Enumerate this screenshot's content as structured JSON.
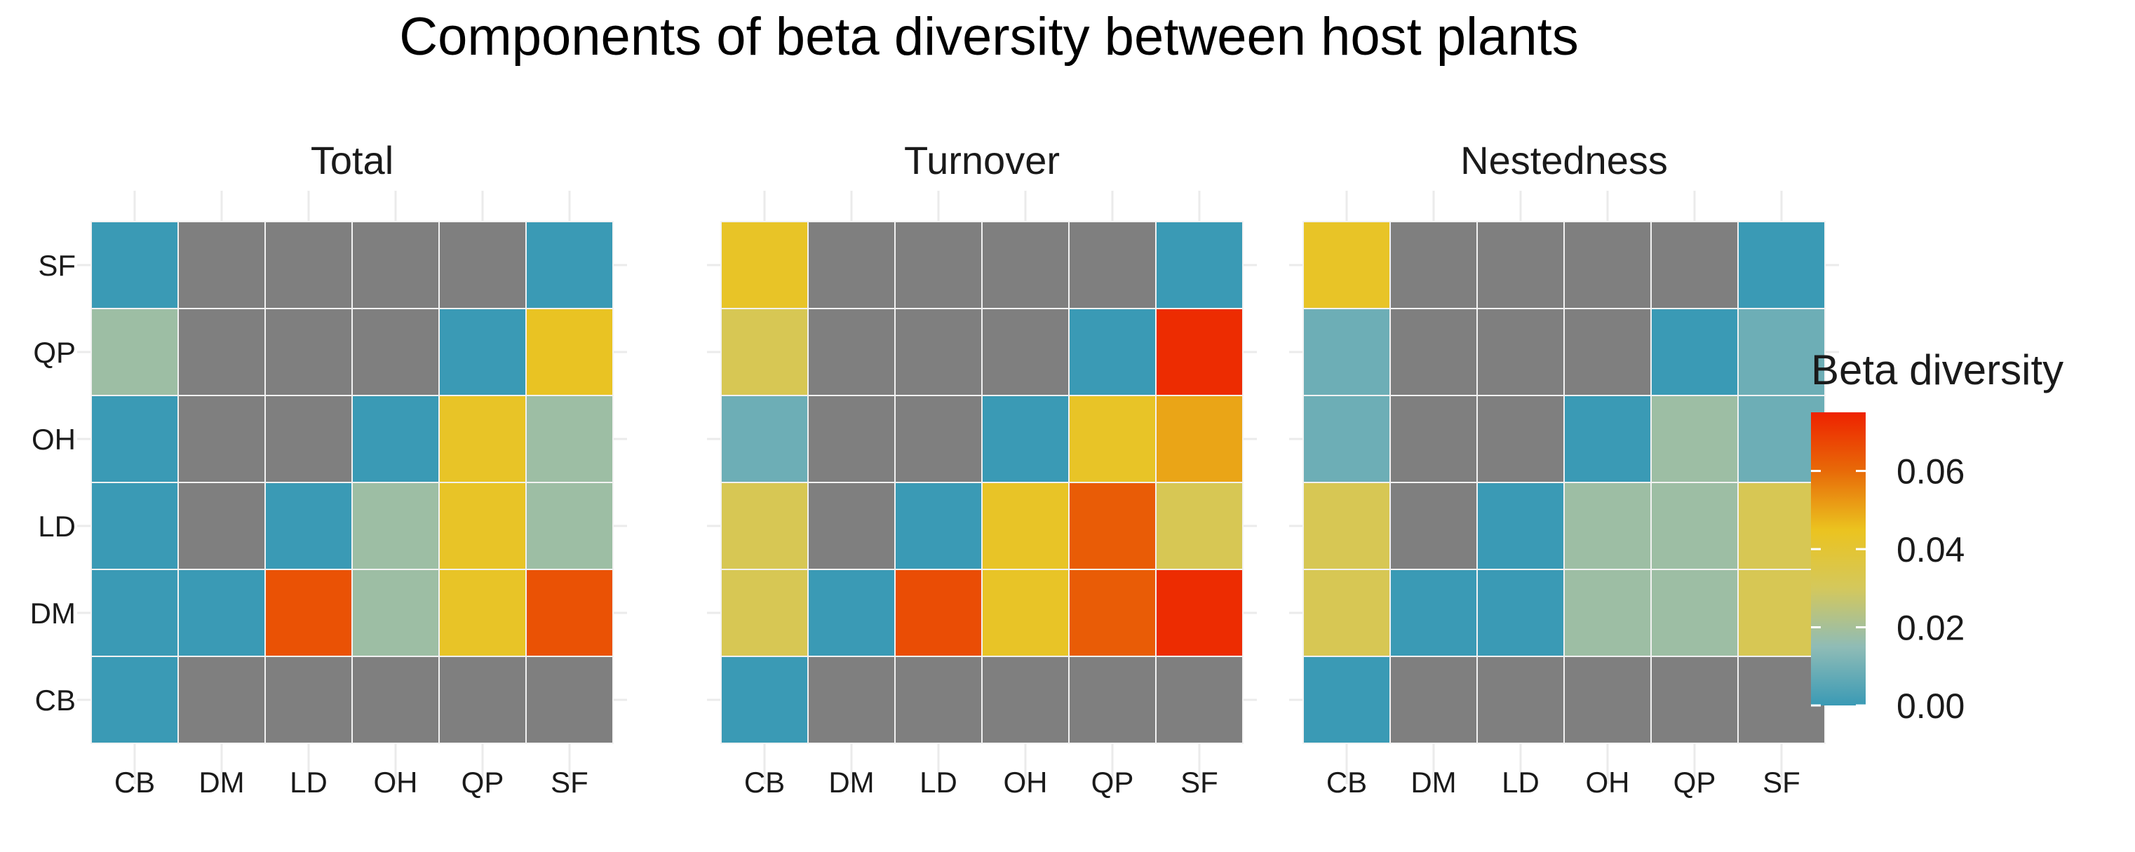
{
  "chart_data": {
    "type": "heatmap",
    "title": "Components of beta diversity between host plants",
    "x_categories": [
      "CB",
      "DM",
      "LD",
      "OH",
      "QP",
      "SF"
    ],
    "y_categories": [
      "CB",
      "DM",
      "LD",
      "OH",
      "QP",
      "SF"
    ],
    "legend": {
      "title": "Beta diversity",
      "range": [
        0,
        0.075
      ],
      "ticks": [
        {
          "value": 0,
          "label": "0.00"
        },
        {
          "value": 0.02,
          "label": "0.02"
        },
        {
          "value": 0.04,
          "label": "0.04"
        },
        {
          "value": 0.06,
          "label": "0.06"
        }
      ],
      "colors": [
        "#3a9ab5",
        "#8fbcb6",
        "#d4c85c",
        "#ebc31f",
        "#e86a08",
        "#ee2200"
      ],
      "na_color": "#7f7f7f",
      "position": "right"
    },
    "panels": [
      {
        "name": "Total",
        "values": [
          [
            0.0,
            null,
            null,
            null,
            null,
            null
          ],
          [
            0.0,
            0.0,
            0.065,
            0.018,
            0.043,
            0.065
          ],
          [
            0.0,
            null,
            0.0,
            0.018,
            0.043,
            0.018
          ],
          [
            0.0,
            null,
            null,
            0.0,
            0.043,
            0.018
          ],
          [
            0.018,
            null,
            null,
            null,
            0.0,
            0.044
          ],
          [
            0.0,
            null,
            null,
            null,
            null,
            0.0
          ]
        ]
      },
      {
        "name": "Turnover",
        "values": [
          [
            0.0,
            null,
            null,
            null,
            null,
            null
          ],
          [
            0.032,
            0.0,
            0.066,
            0.043,
            0.063,
            0.073
          ],
          [
            0.032,
            null,
            0.0,
            0.043,
            0.063,
            0.032
          ],
          [
            0.009,
            null,
            null,
            0.0,
            0.043,
            0.05
          ],
          [
            0.032,
            null,
            null,
            null,
            0.0,
            0.073
          ],
          [
            0.043,
            null,
            null,
            null,
            null,
            0.0
          ]
        ]
      },
      {
        "name": "Nestedness",
        "values": [
          [
            0.0,
            null,
            null,
            null,
            null,
            null
          ],
          [
            0.032,
            0.0,
            0.0,
            0.018,
            0.018,
            0.032
          ],
          [
            0.032,
            null,
            0.0,
            0.018,
            0.018,
            0.032
          ],
          [
            0.009,
            null,
            null,
            0.0,
            0.018,
            0.009
          ],
          [
            0.009,
            null,
            null,
            null,
            0.0,
            0.009
          ],
          [
            0.043,
            null,
            null,
            null,
            null,
            0.0
          ]
        ]
      }
    ]
  }
}
